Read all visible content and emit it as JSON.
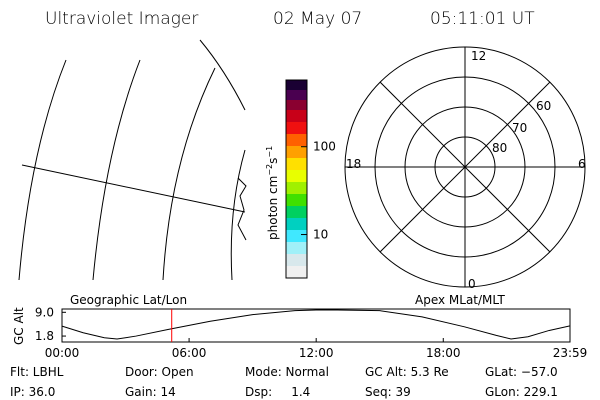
{
  "header": {
    "title": "Ultraviolet Imager",
    "date": "02 May 07",
    "time": "05:11:01 UT"
  },
  "colorbar": {
    "label": [
      "photon cm",
      "−2",
      "s",
      "−1"
    ],
    "scale": "log",
    "lim": [
      3.2,
      575
    ],
    "ticks": [
      10,
      100
    ]
  },
  "polar": {
    "hour_labels": [
      "12",
      "6",
      "18",
      "0"
    ],
    "lat_labels": [
      "60",
      "70",
      "80"
    ]
  },
  "chart_data": {
    "type": "line",
    "title_left": "Geographic Lat/Lon",
    "title_right": "Apex MLat/MLT",
    "ylabel": "GC Alt",
    "x": [
      0,
      1,
      2,
      2.6,
      3.5,
      5,
      7,
      9,
      11,
      12,
      13,
      15,
      17,
      19,
      20.5,
      21.2,
      22,
      23,
      23.98
    ],
    "values": [
      4.8,
      2.8,
      1.3,
      0.9,
      1.8,
      3.8,
      6.3,
      8.3,
      9.5,
      9.7,
      9.7,
      9.5,
      7.6,
      4.6,
      2.0,
      0.9,
      1.6,
      3.5,
      4.9
    ],
    "color": "#000000",
    "xlim": [
      0,
      23.983
    ],
    "xticks": [
      {
        "value": 0,
        "label": "00:00"
      },
      {
        "value": 6,
        "label": "06:00"
      },
      {
        "value": 12,
        "label": "12:00"
      },
      {
        "value": 18,
        "label": "18:00"
      },
      {
        "value": 23.983,
        "label": "23:59"
      }
    ],
    "ylim": [
      0,
      10
    ],
    "yticks": [
      {
        "value": 9,
        "label": "9.0"
      },
      1.8
    ],
    "marker_x": 5.18,
    "marker_color": "#ff0000"
  },
  "footer": {
    "rows": [
      [
        "Flt: LBHL",
        "Door: Open",
        "Mode: Normal",
        "GC Alt: 5.3 Re",
        "GLat: −57.0"
      ],
      [
        "IP: 36.0",
        "Gain: 14",
        "Dsp:     1.4",
        "Seq: 39",
        "GLon: 229.1"
      ]
    ]
  }
}
